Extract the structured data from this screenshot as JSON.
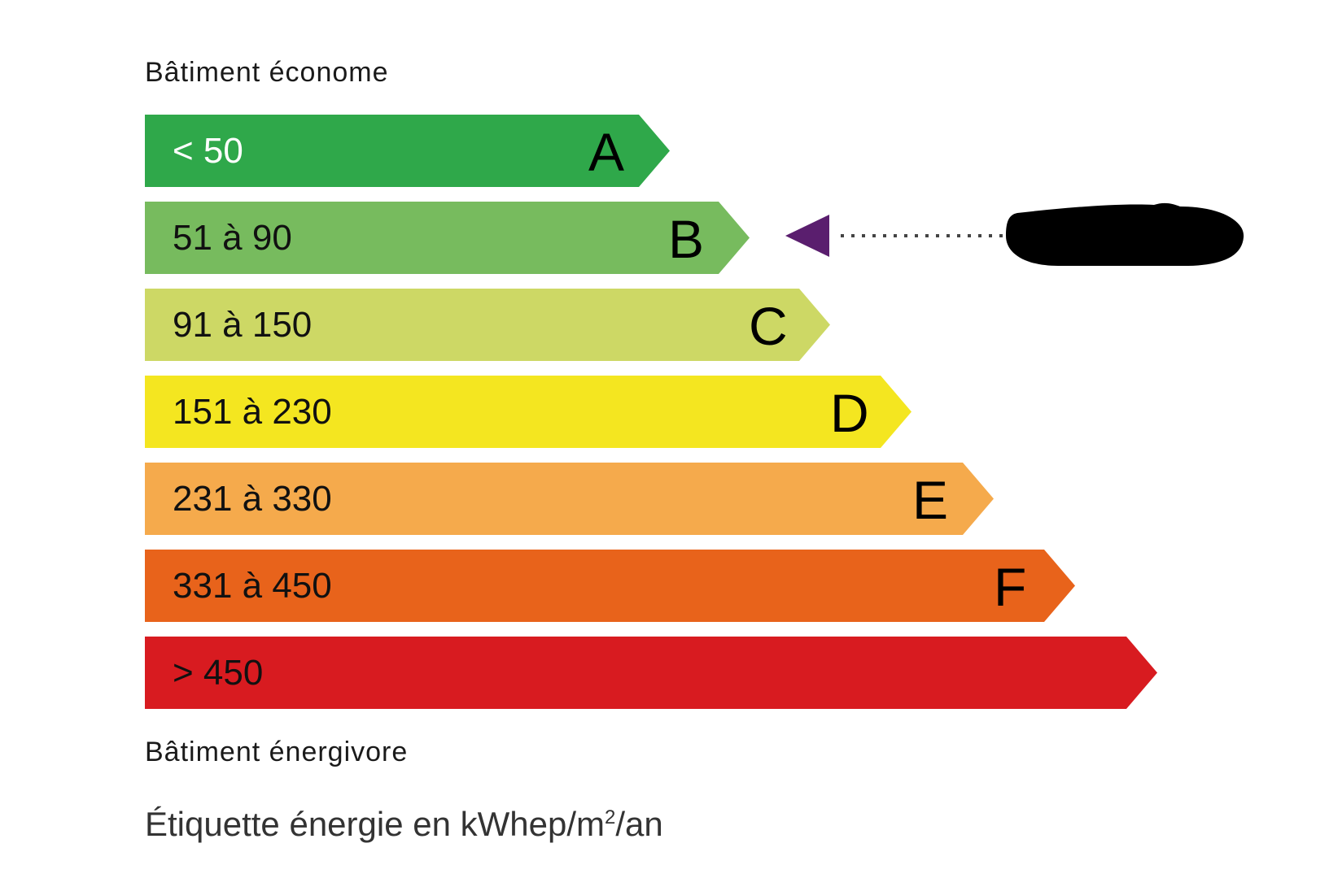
{
  "header": {
    "top_label": "Bâtiment économe",
    "bottom_label": "Bâtiment énergivore"
  },
  "footer": {
    "caption_prefix": "Étiquette énergie en kWhep/m",
    "caption_sup": "2",
    "caption_suffix": "/an"
  },
  "classes": [
    {
      "letter": "A",
      "range": "< 50",
      "color": "#2fa84a",
      "text_color": "#ffffff"
    },
    {
      "letter": "B",
      "range": "51 à 90",
      "color": "#77bb5e",
      "text_color": "#111111"
    },
    {
      "letter": "C",
      "range": "91 à 150",
      "color": "#cdd865",
      "text_color": "#111111"
    },
    {
      "letter": "D",
      "range": "151 à 230",
      "color": "#f4e620",
      "text_color": "#111111"
    },
    {
      "letter": "E",
      "range": "231 à 330",
      "color": "#f5aa4c",
      "text_color": "#111111"
    },
    {
      "letter": "F",
      "range": "331 à 450",
      "color": "#e8631b",
      "text_color": "#111111"
    },
    {
      "letter": "",
      "range": "> 450",
      "color": "#d81b20",
      "text_color": "#111111"
    }
  ],
  "indicator": {
    "class": "B",
    "color": "#5a1e6e",
    "value_redacted": true
  }
}
